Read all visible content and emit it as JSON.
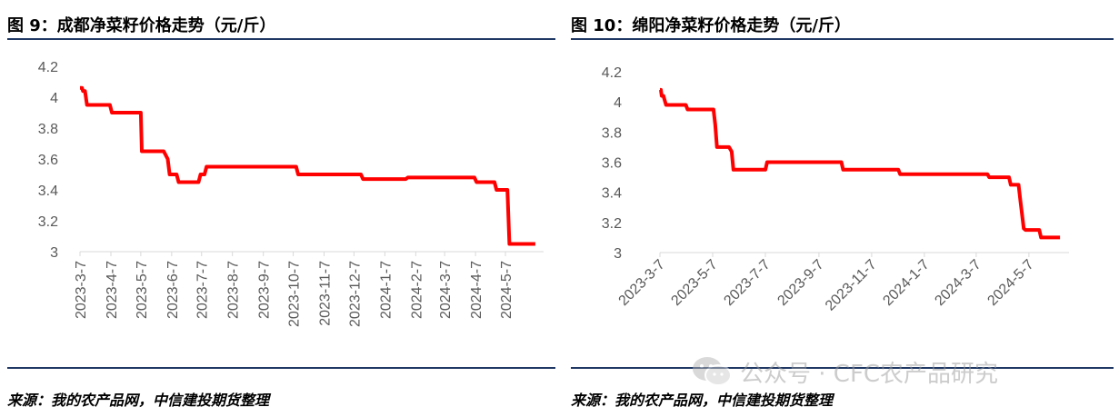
{
  "left": {
    "title": "图 9：成都净菜籽价格走势（元/斤）",
    "source": "来源：我的农产品网，中信建投期货整理"
  },
  "right": {
    "title": "图 10：绵阳净菜籽价格走势（元/斤）",
    "source": "来源：我的农产品网，中信建投期货整理"
  },
  "watermark": {
    "text": "公众号 · CFC农产品研究",
    "icon": "wechat-icon"
  },
  "colors": {
    "line": "#ff0000",
    "rule": "#1f3864",
    "axis": "#d9d9d9",
    "tick": "#595959"
  },
  "chart_data": [
    {
      "type": "line",
      "title": "",
      "xlabel": "",
      "ylabel": "",
      "ylim": [
        3,
        4.2
      ],
      "yticks": [
        "3",
        "3.2",
        "3.4",
        "3.6",
        "3.8",
        "4",
        "4.2"
      ],
      "grid": false,
      "xlim": [
        "2023-03-07",
        "2024-06-07"
      ],
      "xticks": [
        "2023-3-7",
        "2023-4-7",
        "2023-5-7",
        "2023-6-7",
        "2023-7-7",
        "2023-8-7",
        "2023-9-7",
        "2023-10-7",
        "2023-11-7",
        "2023-12-7",
        "2024-1-7",
        "2024-2-7",
        "2024-3-7",
        "2024-4-7",
        "2024-5-7"
      ],
      "xtick_dates": [
        "2023-03-07",
        "2023-04-07",
        "2023-05-07",
        "2023-06-07",
        "2023-07-07",
        "2023-08-07",
        "2023-09-07",
        "2023-10-07",
        "2023-11-07",
        "2023-12-07",
        "2024-01-07",
        "2024-02-07",
        "2024-03-07",
        "2024-04-07",
        "2024-05-07"
      ],
      "xtick_rotation": -90,
      "series": [
        {
          "name": "",
          "color": "#ff0000",
          "x": [
            "2023-03-07",
            "2023-03-09",
            "2023-03-10",
            "2023-03-12",
            "2023-03-14",
            "2023-04-06",
            "2023-04-08",
            "2023-05-07",
            "2023-05-08",
            "2023-05-30",
            "2023-06-03",
            "2023-06-05",
            "2023-06-12",
            "2023-06-14",
            "2023-07-04",
            "2023-07-06",
            "2023-07-10",
            "2023-07-12",
            "2023-10-10",
            "2023-10-12",
            "2023-12-14",
            "2023-12-16",
            "2024-01-28",
            "2024-01-30",
            "2024-04-06",
            "2024-04-08",
            "2024-04-26",
            "2024-04-28",
            "2024-05-09",
            "2024-05-11",
            "2024-06-06"
          ],
          "y": [
            4.06,
            4.06,
            4.04,
            4.04,
            3.95,
            3.95,
            3.9,
            3.9,
            3.65,
            3.65,
            3.6,
            3.5,
            3.5,
            3.45,
            3.45,
            3.5,
            3.5,
            3.55,
            3.55,
            3.5,
            3.5,
            3.47,
            3.47,
            3.48,
            3.48,
            3.45,
            3.45,
            3.4,
            3.4,
            3.05,
            3.05
          ]
        }
      ]
    },
    {
      "type": "line",
      "title": "",
      "xlabel": "",
      "ylabel": "",
      "ylim": [
        3,
        4.2
      ],
      "yticks": [
        "3",
        "3.2",
        "3.4",
        "3.6",
        "3.8",
        "4",
        "4.2"
      ],
      "grid": false,
      "xlim": [
        "2023-03-07",
        "2024-06-14"
      ],
      "xticks": [
        "2023-3-7",
        "2023-5-7",
        "2023-7-7",
        "2023-9-7",
        "2023-11-7",
        "2024-1-7",
        "2024-3-7",
        "2024-5-7"
      ],
      "xtick_dates": [
        "2023-03-07",
        "2023-05-07",
        "2023-07-07",
        "2023-09-07",
        "2023-11-07",
        "2024-01-07",
        "2024-03-07",
        "2024-05-07"
      ],
      "xtick_rotation": -45,
      "series": [
        {
          "name": "",
          "color": "#ff0000",
          "x": [
            "2023-03-07",
            "2023-03-08",
            "2023-03-09",
            "2023-03-11",
            "2023-03-12",
            "2023-03-14",
            "2023-04-06",
            "2023-04-08",
            "2023-05-08",
            "2023-05-10",
            "2023-05-12",
            "2023-05-26",
            "2023-05-29",
            "2023-05-31",
            "2023-07-07",
            "2023-07-09",
            "2023-10-03",
            "2023-10-05",
            "2023-12-08",
            "2023-12-10",
            "2024-03-20",
            "2024-03-22",
            "2024-04-14",
            "2024-04-16",
            "2024-04-25",
            "2024-04-27",
            "2024-05-01",
            "2024-05-03",
            "2024-05-19",
            "2024-05-21",
            "2024-06-12"
          ],
          "y": [
            4.08,
            4.08,
            4.04,
            4.04,
            4.02,
            3.98,
            3.98,
            3.95,
            3.95,
            3.85,
            3.7,
            3.7,
            3.67,
            3.55,
            3.55,
            3.6,
            3.6,
            3.55,
            3.55,
            3.52,
            3.52,
            3.5,
            3.5,
            3.45,
            3.45,
            3.35,
            3.16,
            3.15,
            3.15,
            3.1,
            3.1
          ]
        }
      ]
    }
  ]
}
